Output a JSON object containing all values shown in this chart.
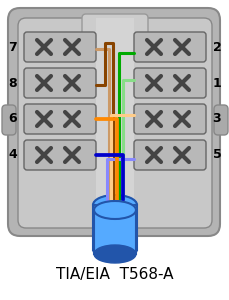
{
  "title": "TIA/EIA  T568-A",
  "title_fontsize": 11,
  "figsize": [
    2.3,
    3.0
  ],
  "dpi": 100,
  "outer_plate_color": "#b4b4b4",
  "outer_plate_edge": "#888888",
  "inner_body_color": "#c8c8c8",
  "inner_body_edge": "#888888",
  "port_bg_color": "#b8b8b8",
  "port_edge_color": "#666666",
  "idc_color": "#444444",
  "tab_color": "#aaaaaa",
  "cable_blue": "#55aaff",
  "cable_blue_dark": "#2255aa",
  "top_slot_color": "#d0d0d0",
  "left_pins": [
    "7",
    "8",
    "6",
    "4"
  ],
  "right_pins": [
    "2",
    "1",
    "3",
    "5"
  ],
  "pin_fontsize": 9,
  "wire_brown_stripe": "#cc9966",
  "wire_brown": "#884400",
  "wire_orange": "#ff8800",
  "wire_orange_stripe": "#ffcc88",
  "wire_green": "#00aa00",
  "wire_green_stripe": "#88dd88",
  "wire_blue": "#0000cc",
  "wire_blue_stripe": "#8888ff"
}
